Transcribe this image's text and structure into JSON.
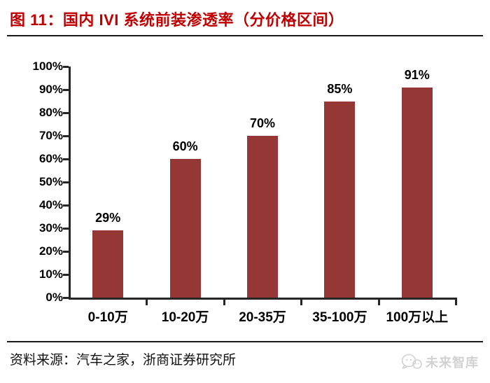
{
  "header": {
    "title": "图 11：国内 IVI 系统前装渗透率（分价格区间）"
  },
  "footer": {
    "source_text": "资料来源：汽车之家，浙商证券研究所",
    "watermark_label": "未来智库",
    "watermark_icon": "chat-bubbles-icon"
  },
  "colors": {
    "bar": "#953735",
    "title": "#C00000",
    "axis": "#262626",
    "text": "#000000",
    "watermark": "#d2d2d2"
  },
  "chart_data": {
    "type": "bar",
    "title": "国内 IVI 系统前装渗透率（分价格区间）",
    "categories": [
      "0-10万",
      "10-20万",
      "20-35万",
      "35-100万",
      "100万以上"
    ],
    "values": [
      29,
      60,
      70,
      85,
      91
    ],
    "value_labels": [
      "29%",
      "60%",
      "70%",
      "85%",
      "91%"
    ],
    "xlabel": "",
    "ylabel": "",
    "ylim": [
      0,
      100
    ],
    "ytick_interval": 10,
    "yticks": [
      "0%",
      "10%",
      "20%",
      "30%",
      "40%",
      "50%",
      "60%",
      "70%",
      "80%",
      "90%",
      "100%"
    ],
    "grid": false,
    "legend_position": "none",
    "bar_color": "#953735"
  }
}
